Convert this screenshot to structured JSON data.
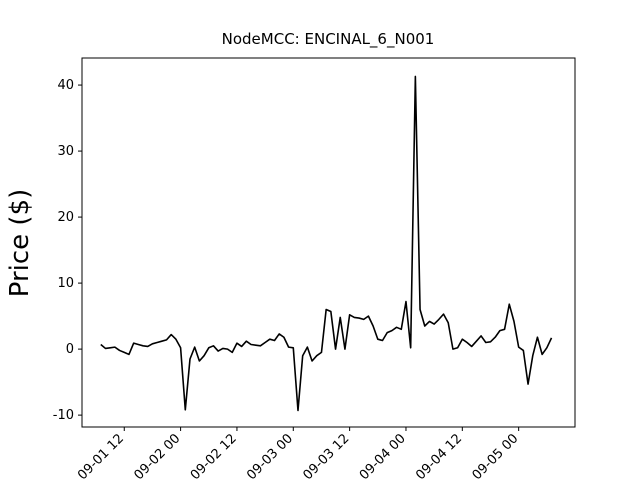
{
  "chart_data": {
    "type": "line",
    "title": "NodeMCC: ENCINAL_6_N001",
    "y_label": "Price ($)",
    "x": [
      "09-01 07",
      "09-01 08",
      "09-01 09",
      "09-01 10",
      "09-01 11",
      "09-01 12",
      "09-01 13",
      "09-01 14",
      "09-01 15",
      "09-01 16",
      "09-01 17",
      "09-01 18",
      "09-01 19",
      "09-01 20",
      "09-01 21",
      "09-01 22",
      "09-01 23",
      "09-02 00",
      "09-02 01",
      "09-02 02",
      "09-02 03",
      "09-02 04",
      "09-02 05",
      "09-02 06",
      "09-02 07",
      "09-02 08",
      "09-02 09",
      "09-02 10",
      "09-02 11",
      "09-02 12",
      "09-02 13",
      "09-02 14",
      "09-02 15",
      "09-02 16",
      "09-02 17",
      "09-02 18",
      "09-02 19",
      "09-02 20",
      "09-02 21",
      "09-02 22",
      "09-02 23",
      "09-03 00",
      "09-03 01",
      "09-03 02",
      "09-03 03",
      "09-03 04",
      "09-03 05",
      "09-03 06",
      "09-03 07",
      "09-03 08",
      "09-03 09",
      "09-03 10",
      "09-03 11",
      "09-03 12",
      "09-03 13",
      "09-03 14",
      "09-03 15",
      "09-03 16",
      "09-03 17",
      "09-03 18",
      "09-03 19",
      "09-03 20",
      "09-03 21",
      "09-03 22",
      "09-03 23",
      "09-04 00",
      "09-04 01",
      "09-04 02",
      "09-04 03",
      "09-04 04",
      "09-04 05",
      "09-04 06",
      "09-04 07",
      "09-04 08",
      "09-04 09",
      "09-04 10",
      "09-04 11",
      "09-04 12",
      "09-04 13",
      "09-04 14",
      "09-04 15",
      "09-04 16",
      "09-04 17",
      "09-04 18",
      "09-04 19",
      "09-04 20",
      "09-04 21",
      "09-04 22",
      "09-04 23",
      "09-05 00",
      "09-05 01",
      "09-05 02",
      "09-05 03",
      "09-05 04",
      "09-05 05",
      "09-05 06",
      "09-05 07"
    ],
    "series": [
      {
        "color": "#000000",
        "values": [
          0.7,
          0.1,
          0.2,
          0.3,
          -0.2,
          -0.5,
          -0.8,
          0.9,
          0.7,
          0.5,
          0.4,
          0.8,
          1.0,
          1.2,
          1.4,
          2.2,
          1.5,
          0.2,
          -9.2,
          -1.5,
          0.3,
          -1.8,
          -1.0,
          0.2,
          0.5,
          -0.3,
          0.1,
          0.0,
          -0.5,
          0.9,
          0.4,
          1.2,
          0.7,
          0.6,
          0.5,
          1.0,
          1.5,
          1.3,
          2.3,
          1.8,
          0.3,
          0.2,
          -9.3,
          -1.0,
          0.3,
          -1.8,
          -1.0,
          -0.5,
          6.0,
          5.7,
          0.0,
          4.8,
          0.0,
          5.2,
          4.8,
          4.7,
          4.5,
          5.0,
          3.5,
          1.5,
          1.3,
          2.5,
          2.8,
          3.3,
          3.0,
          7.2,
          0.2,
          41.3,
          6.0,
          3.5,
          4.2,
          3.8,
          4.5,
          5.3,
          4.0,
          0.0,
          0.2,
          1.5,
          1.0,
          0.4,
          1.2,
          2.0,
          1.0,
          1.1,
          1.8,
          2.8,
          3.0,
          6.8,
          4.2,
          0.3,
          -0.2,
          -5.3,
          -1.0,
          1.8,
          -0.8,
          0.2,
          1.7
        ]
      }
    ],
    "xlim": [
      "09-01 03",
      "09-05 12"
    ],
    "xticks": [
      "09-01 12",
      "09-02 00",
      "09-02 12",
      "09-03 00",
      "09-03 12",
      "09-04 00",
      "09-04 12",
      "09-05 00"
    ],
    "ylim": [
      -11.8,
      44.1
    ],
    "yticks": [
      -10,
      0,
      10,
      20,
      30,
      40
    ]
  }
}
